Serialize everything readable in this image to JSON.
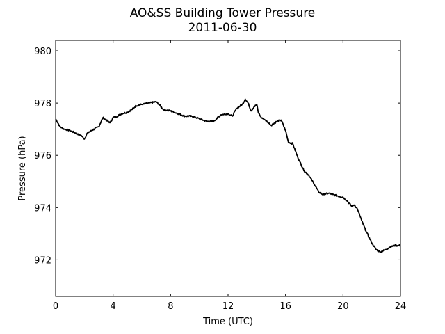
{
  "chart_data": {
    "type": "line",
    "title": "AO&SS Building Tower Pressure",
    "subtitle": "2011-06-30",
    "xlabel": "Time (UTC)",
    "ylabel": "Pressure (hPa)",
    "xlim": [
      0,
      24
    ],
    "ylim": [
      970.6,
      980.4
    ],
    "xticks": [
      0,
      4,
      8,
      12,
      16,
      20,
      24
    ],
    "yticks": [
      972,
      974,
      976,
      978,
      980
    ],
    "grid": false,
    "colors": {
      "line": "#000000",
      "frame": "#000000",
      "background": "#ffffff"
    },
    "series": [
      {
        "x": [
          0.0,
          0.3,
          0.6,
          1.0,
          1.4,
          1.8,
          2.0,
          2.2,
          2.5,
          3.0,
          3.3,
          3.5,
          3.8,
          4.0,
          4.3,
          4.6,
          5.0,
          5.3,
          5.6,
          6.0,
          6.5,
          7.0,
          7.2,
          7.5,
          8.0,
          8.5,
          9.0,
          9.5,
          10.0,
          10.5,
          11.0,
          11.5,
          12.0,
          12.3,
          12.6,
          13.0,
          13.2,
          13.4,
          13.6,
          13.8,
          14.0,
          14.1,
          14.3,
          14.6,
          15.0,
          15.4,
          15.7,
          16.0,
          16.2,
          16.5,
          16.8,
          17.0,
          17.3,
          17.6,
          18.0,
          18.3,
          18.6,
          19.0,
          19.3,
          19.6,
          20.0,
          20.3,
          20.6,
          20.8,
          21.0,
          21.3,
          21.6,
          22.0,
          22.3,
          22.6,
          23.0,
          23.3,
          23.6,
          24.0
        ],
        "y": [
          977.4,
          977.1,
          977.0,
          976.95,
          976.85,
          976.75,
          976.62,
          976.85,
          976.95,
          977.1,
          977.45,
          977.35,
          977.25,
          977.45,
          977.5,
          977.6,
          977.65,
          977.75,
          977.9,
          977.95,
          978.0,
          978.05,
          977.95,
          977.75,
          977.7,
          977.6,
          977.5,
          977.5,
          977.4,
          977.3,
          977.3,
          977.55,
          977.6,
          977.5,
          977.8,
          977.95,
          978.15,
          978.0,
          977.7,
          977.85,
          977.95,
          977.65,
          977.45,
          977.35,
          977.15,
          977.3,
          977.35,
          976.95,
          976.5,
          976.45,
          976.0,
          975.75,
          975.4,
          975.25,
          974.9,
          974.6,
          974.5,
          974.55,
          974.5,
          974.45,
          974.4,
          974.25,
          974.05,
          974.1,
          973.95,
          973.5,
          973.1,
          972.65,
          972.4,
          972.3,
          972.4,
          972.5,
          972.55,
          972.55
        ]
      }
    ]
  }
}
